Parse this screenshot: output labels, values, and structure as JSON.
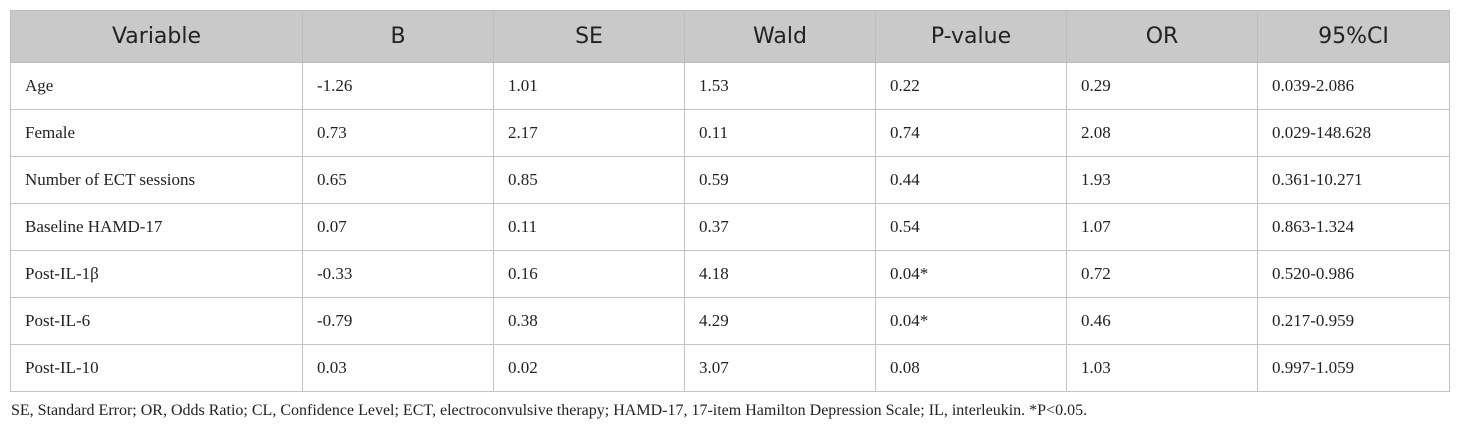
{
  "table": {
    "headers": [
      "Variable",
      "B",
      "SE",
      "Wald",
      "P-value",
      "OR",
      "95%CI"
    ],
    "rows": [
      [
        "Age",
        "-1.26",
        "1.01",
        "1.53",
        "0.22",
        "0.29",
        "0.039-2.086"
      ],
      [
        "Female",
        "0.73",
        "2.17",
        "0.11",
        "0.74",
        "2.08",
        "0.029-148.628"
      ],
      [
        "Number of ECT sessions",
        "0.65",
        "0.85",
        "0.59",
        "0.44",
        "1.93",
        "0.361-10.271"
      ],
      [
        "Baseline HAMD-17",
        "0.07",
        "0.11",
        "0.37",
        "0.54",
        "1.07",
        "0.863-1.324"
      ],
      [
        "Post-IL-1β",
        "-0.33",
        "0.16",
        "4.18",
        "0.04*",
        "0.72",
        "0.520-0.986"
      ],
      [
        "Post-IL-6",
        "-0.79",
        "0.38",
        "4.29",
        "0.04*",
        "0.46",
        "0.217-0.959"
      ],
      [
        "Post-IL-10",
        "0.03",
        "0.02",
        "3.07",
        "0.08",
        "1.03",
        "0.997-1.059"
      ]
    ]
  },
  "footnote": "SE, Standard Error; OR, Odds Ratio; CL, Confidence Level; ECT, electroconvulsive therapy; HAMD-17, 17-item Hamilton Depression Scale; IL, interleukin. *P<0.05.",
  "colors": {
    "header_background": "#c9c9c9",
    "border": "#c4c4c4",
    "text": "#222222"
  }
}
